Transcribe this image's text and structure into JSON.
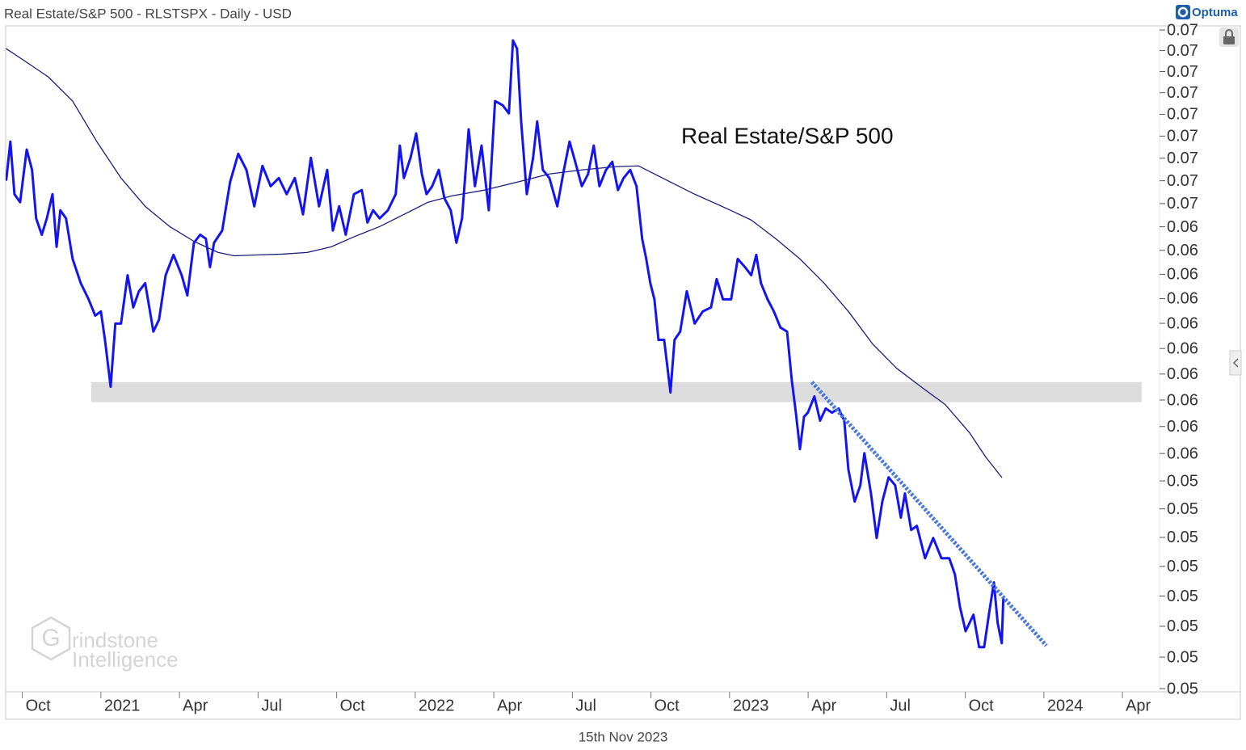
{
  "chart_data": {
    "type": "line",
    "title": "Real Estate/S&P 500 - RLSTSPX - Daily - USD",
    "brand": "Optuma",
    "annotation": "Real Estate/S&P 500",
    "date_label": "15th Nov 2023",
    "watermark": {
      "mark": "G",
      "lines": [
        "rindstone",
        "Intelligence"
      ]
    },
    "log_scale": true,
    "xlim": [
      2020.697,
      2024.368
    ],
    "ylim": [
      0.0469,
      0.0732
    ],
    "xticks": [
      {
        "value": 2020.75,
        "label": "Oct"
      },
      2021,
      {
        "value": 2021.25,
        "label": "Apr"
      },
      {
        "value": 2021.5,
        "label": "Jul"
      },
      {
        "value": 2021.75,
        "label": "Oct"
      },
      2022,
      {
        "value": 2022.25,
        "label": "Apr"
      },
      {
        "value": 2022.5,
        "label": "Jul"
      },
      {
        "value": 2022.75,
        "label": "Oct"
      },
      2023,
      {
        "value": 2023.25,
        "label": "Apr"
      },
      {
        "value": 2023.5,
        "label": "Jul"
      },
      {
        "value": 2023.75,
        "label": "Oct"
      },
      2024,
      {
        "value": 2024.25,
        "label": "Apr"
      }
    ],
    "yticks": [
      {
        "value": 0.073,
        "label": "0.07"
      },
      {
        "value": 0.072,
        "label": "0.07"
      },
      {
        "value": 0.071,
        "label": "0.07"
      },
      {
        "value": 0.07,
        "label": "0.07"
      },
      {
        "value": 0.069,
        "label": "0.07"
      },
      {
        "value": 0.068,
        "label": "0.07"
      },
      {
        "value": 0.067,
        "label": "0.07"
      },
      {
        "value": 0.066,
        "label": "0.07"
      },
      {
        "value": 0.065,
        "label": "0.07"
      },
      {
        "value": 0.064,
        "label": "0.06"
      },
      {
        "value": 0.063,
        "label": "0.06"
      },
      {
        "value": 0.062,
        "label": "0.06"
      },
      {
        "value": 0.061,
        "label": "0.06"
      },
      {
        "value": 0.06,
        "label": "0.06"
      },
      {
        "value": 0.059,
        "label": "0.06"
      },
      {
        "value": 0.058,
        "label": "0.06"
      },
      {
        "value": 0.057,
        "label": "0.06"
      },
      {
        "value": 0.056,
        "label": "0.06"
      },
      {
        "value": 0.055,
        "label": "0.06"
      },
      {
        "value": 0.054,
        "label": "0.05"
      },
      {
        "value": 0.053,
        "label": "0.05"
      },
      {
        "value": 0.052,
        "label": "0.05"
      },
      {
        "value": 0.051,
        "label": "0.05"
      },
      {
        "value": 0.05,
        "label": "0.05"
      },
      {
        "value": 0.049,
        "label": "0.05"
      },
      {
        "value": 0.048,
        "label": "0.05"
      },
      {
        "value": 0.047,
        "label": "0.05"
      }
    ],
    "zone": {
      "x": [
        2020.969,
        2024.311
      ],
      "y": [
        0.05692,
        0.05769
      ],
      "color": "#dcdcdc"
    },
    "trendline": {
      "x": [
        2023.262,
        2024.008
      ],
      "values": [
        0.05769,
        0.04837
      ],
      "color": "#4a78d8"
    },
    "series": [
      {
        "color": "#1414f0",
        "width": 3,
        "x": [
          2020.699,
          2020.712,
          2020.725,
          2020.743,
          2020.764,
          2020.781,
          2020.794,
          2020.812,
          2020.828,
          2020.846,
          2020.859,
          2020.871,
          2020.889,
          2020.91,
          2020.936,
          2020.961,
          2020.982,
          2021.0,
          2021.013,
          2021.031,
          2021.046,
          2021.064,
          2021.085,
          2021.103,
          2021.121,
          2021.141,
          2021.167,
          2021.185,
          2021.206,
          2021.231,
          2021.257,
          2021.275,
          2021.296,
          2021.316,
          2021.334,
          2021.347,
          2021.36,
          2021.386,
          2021.411,
          2021.437,
          2021.463,
          2021.488,
          2021.514,
          2021.54,
          2021.566,
          2021.591,
          2021.617,
          2021.643,
          2021.668,
          2021.694,
          2021.72,
          2021.738,
          2021.758,
          2021.779,
          2021.805,
          2021.83,
          2021.848,
          2021.866,
          2021.887,
          2021.913,
          2021.938,
          2021.951,
          2021.964,
          2021.985,
          2022.003,
          2022.021,
          2022.036,
          2022.054,
          2022.075,
          2022.093,
          2022.113,
          2022.131,
          2022.149,
          2022.17,
          2022.19,
          2022.211,
          2022.234,
          2022.254,
          2022.278,
          2022.298,
          2022.311,
          2022.324,
          2022.337,
          2022.355,
          2022.375,
          2022.388,
          2022.406,
          2022.427,
          2022.452,
          2022.473,
          2022.491,
          2022.509,
          2022.53,
          2022.55,
          2022.568,
          2022.586,
          2022.607,
          2022.627,
          2022.645,
          2022.663,
          2022.684,
          2022.704,
          2022.722,
          2022.735,
          2022.748,
          2022.761,
          2022.774,
          2022.792,
          2022.812,
          2022.825,
          2022.843,
          2022.864,
          2022.889,
          2022.915,
          2022.941,
          2022.959,
          2022.979,
          2023.005,
          2023.026,
          2023.049,
          2023.069,
          2023.085,
          2023.1,
          2023.121,
          2023.141,
          2023.162,
          2023.183,
          2023.198,
          2023.211,
          2023.224,
          2023.237,
          2023.249,
          2023.27,
          2023.288,
          2023.306,
          2023.326,
          2023.347,
          2023.365,
          2023.378,
          2023.398,
          2023.416,
          2023.429,
          2023.45,
          2023.468,
          2023.486,
          2023.506,
          2023.527,
          2023.545,
          2023.558,
          2023.578,
          2023.596,
          2023.622,
          2023.648,
          2023.674,
          2023.699,
          2023.717,
          2023.733,
          2023.751,
          2023.776,
          2023.794,
          2023.81,
          2023.825,
          2023.841,
          2023.853,
          2023.866,
          2023.871
        ],
        "values": [
          0.06605,
          0.06775,
          0.06541,
          0.06506,
          0.06739,
          0.06648,
          0.06436,
          0.06366,
          0.06436,
          0.06541,
          0.06315,
          0.06471,
          0.06436,
          0.06264,
          0.06163,
          0.06097,
          0.06031,
          0.06048,
          0.05934,
          0.05751,
          0.05999,
          0.05999,
          0.06196,
          0.06064,
          0.0613,
          0.06163,
          0.05967,
          0.06015,
          0.06196,
          0.06281,
          0.06196,
          0.06113,
          0.06332,
          0.06366,
          0.06349,
          0.0623,
          0.06332,
          0.06384,
          0.06594,
          0.0672,
          0.06648,
          0.06488,
          0.06666,
          0.06576,
          0.06612,
          0.06541,
          0.06612,
          0.06453,
          0.06702,
          0.06488,
          0.06648,
          0.06384,
          0.06488,
          0.06366,
          0.06541,
          0.06559,
          0.06418,
          0.06471,
          0.06436,
          0.06471,
          0.06541,
          0.06757,
          0.06612,
          0.06702,
          0.06812,
          0.0663,
          0.06541,
          0.06576,
          0.06648,
          0.06523,
          0.06471,
          0.06332,
          0.06436,
          0.06831,
          0.06576,
          0.06757,
          0.06471,
          0.06961,
          0.06942,
          0.06904,
          0.07249,
          0.07209,
          0.06867,
          0.06541,
          0.06702,
          0.06867,
          0.06648,
          0.06612,
          0.06488,
          0.06648,
          0.06775,
          0.06684,
          0.06576,
          0.0663,
          0.06757,
          0.06576,
          0.06648,
          0.06684,
          0.06559,
          0.06612,
          0.06648,
          0.06576,
          0.06349,
          0.06264,
          0.06163,
          0.06097,
          0.05934,
          0.05934,
          0.05729,
          0.05934,
          0.05967,
          0.0613,
          0.05999,
          0.06048,
          0.06064,
          0.0618,
          0.06097,
          0.06097,
          0.06264,
          0.0623,
          0.06196,
          0.06281,
          0.06163,
          0.06097,
          0.06048,
          0.05983,
          0.05967,
          0.05776,
          0.05652,
          0.05516,
          0.05637,
          0.05652,
          0.05714,
          0.05622,
          0.05668,
          0.05652,
          0.05668,
          0.05622,
          0.05442,
          0.05326,
          0.05384,
          0.05501,
          0.05355,
          0.05198,
          0.05326,
          0.05413,
          0.05384,
          0.05269,
          0.05355,
          0.05226,
          0.0524,
          0.05128,
          0.05198,
          0.05128,
          0.05128,
          0.05073,
          0.04964,
          0.04884,
          0.04938,
          0.04832,
          0.04832,
          0.04938,
          0.05046,
          0.04911,
          0.04845,
          0.04991
        ]
      },
      {
        "color": "#1c1c7a",
        "width": 1.3,
        "x": [
          2020.699,
          2020.756,
          2020.833,
          2020.91,
          2020.987,
          2021.064,
          2021.141,
          2021.219,
          2021.296,
          2021.373,
          2021.424,
          2021.501,
          2021.578,
          2021.656,
          2021.733,
          2021.81,
          2021.887,
          2021.964,
          2022.041,
          2022.118,
          2022.221,
          2022.324,
          2022.427,
          2022.53,
          2022.632,
          2022.71,
          2022.787,
          2022.889,
          2022.992,
          2023.069,
          2023.147,
          2023.224,
          2023.301,
          2023.378,
          2023.455,
          2023.532,
          2023.609,
          2023.686,
          2023.764,
          2023.815,
          2023.866
        ],
        "values": [
          0.07209,
          0.07152,
          0.07074,
          0.06961,
          0.06775,
          0.06612,
          0.06488,
          0.06401,
          0.06338,
          0.06291,
          0.06277,
          0.06281,
          0.06284,
          0.06291,
          0.06315,
          0.0636,
          0.06401,
          0.06453,
          0.06506,
          0.06534,
          0.06559,
          0.06594,
          0.0663,
          0.06648,
          0.06662,
          0.06666,
          0.06612,
          0.06541,
          0.06478,
          0.06429,
          0.06349,
          0.06264,
          0.06163,
          0.06048,
          0.05918,
          0.05822,
          0.05751,
          0.05683,
          0.05576,
          0.05487,
          0.05413
        ]
      }
    ]
  }
}
